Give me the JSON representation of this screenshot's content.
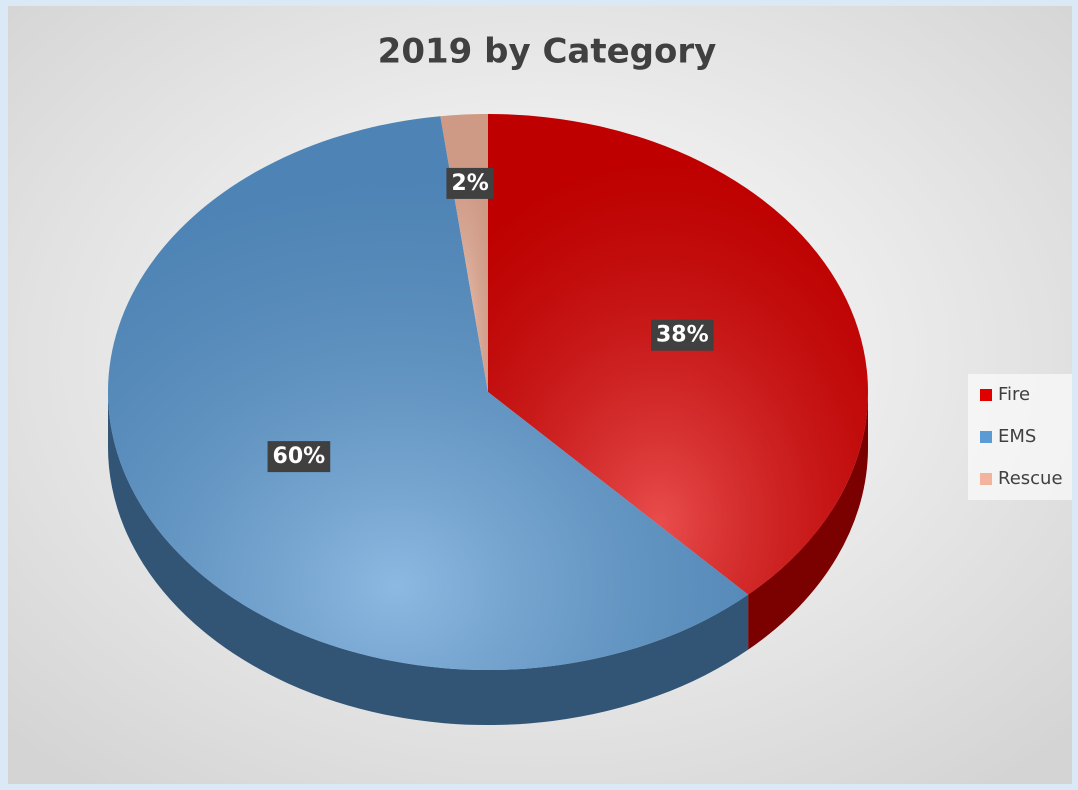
{
  "chart_data": {
    "type": "pie",
    "title": "2019 by Category",
    "categories": [
      "Fire",
      "EMS",
      "Rescue"
    ],
    "values": [
      38,
      60,
      2
    ],
    "value_labels": [
      "38%",
      "60%",
      "2%"
    ],
    "colors": [
      "#e00000",
      "#5b9bd5",
      "#f2b49c"
    ],
    "legend": "right"
  }
}
